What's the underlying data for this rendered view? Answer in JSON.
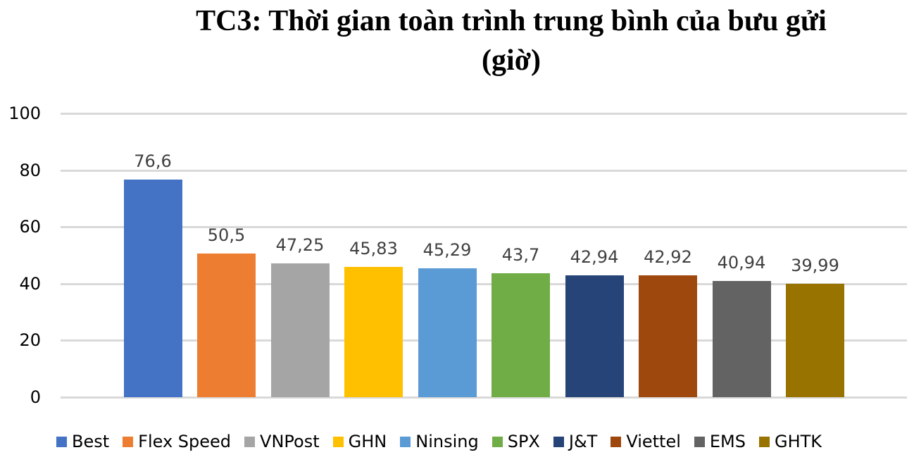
{
  "chart_data": {
    "type": "bar",
    "title": "TC3: Thời gian toàn trình trung bình của bưu gửi (giờ)",
    "title_lines": [
      "TC3: Thời gian toàn trình trung bình của bưu gửi",
      "(giờ)"
    ],
    "xlabel": "",
    "ylabel": "",
    "ylim": [
      0,
      100
    ],
    "yticks": [
      0,
      20,
      40,
      60,
      80,
      100
    ],
    "ytick_labels": [
      "0",
      "20",
      "40",
      "60",
      "80",
      "100"
    ],
    "grid": true,
    "legend_position": "bottom",
    "categories": [
      "Best",
      "Flex Speed",
      "VNPost",
      "GHN",
      "Ninsing",
      "SPX",
      "J&T",
      "Viettel",
      "EMS",
      "GHTK"
    ],
    "values": [
      76.6,
      50.5,
      47.25,
      45.83,
      45.29,
      43.7,
      42.94,
      42.92,
      40.94,
      39.99
    ],
    "data_labels": [
      "76,6",
      "50,5",
      "47,25",
      "45,83",
      "45,29",
      "43,7",
      "42,94",
      "42,92",
      "40,94",
      "39,99"
    ],
    "colors": [
      "#4472c4",
      "#ed7d31",
      "#a5a5a5",
      "#ffc000",
      "#5b9bd5",
      "#70ad47",
      "#264478",
      "#9e480e",
      "#636363",
      "#997300"
    ]
  }
}
